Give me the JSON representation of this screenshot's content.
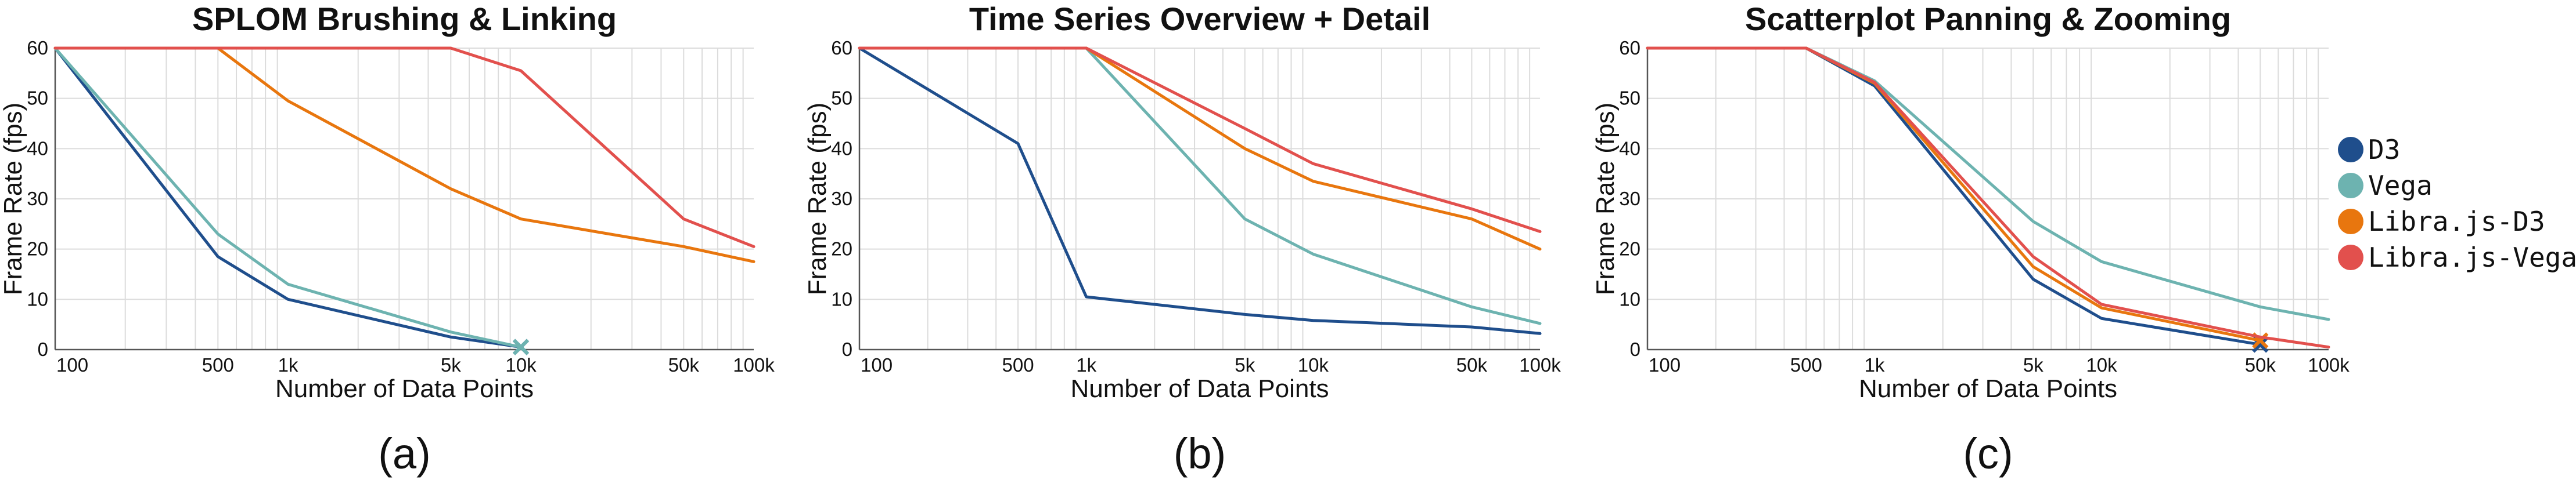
{
  "colors": {
    "D3": "#1f4e8c",
    "Vega": "#6db3b0",
    "Libra.js-D3": "#e8760e",
    "Libra.js-Vega": "#e2504d"
  },
  "legend": {
    "items": [
      {
        "label": "D3",
        "color": "#1f4e8c"
      },
      {
        "label": "Vega",
        "color": "#6db3b0"
      },
      {
        "label": "Libra.js-D3",
        "color": "#e8760e"
      },
      {
        "label": "Libra.js-Vega",
        "color": "#e2504d"
      }
    ]
  },
  "chart_data": [
    {
      "type": "line",
      "title": "SPLOM Brushing & Linking",
      "xlabel": "Number of Data Points",
      "ylabel": "Frame Rate (fps)",
      "panel_label": "(a)",
      "xscale": "log",
      "xlim": [
        100,
        100000
      ],
      "ylim": [
        0,
        60
      ],
      "grid": true,
      "x_ticks": [
        100,
        500,
        1000,
        5000,
        10000,
        50000,
        100000
      ],
      "x_tick_labels": [
        "100",
        "500",
        "1k",
        "5k",
        "10k",
        "50k",
        "100k"
      ],
      "y_ticks": [
        0,
        10,
        20,
        30,
        40,
        50,
        60
      ],
      "series": [
        {
          "name": "D3",
          "x": [
            100,
            500,
            1000,
            5000,
            10000
          ],
          "values": [
            60,
            18.5,
            10,
            2.5,
            0.5
          ],
          "end_marker": "x"
        },
        {
          "name": "Vega",
          "x": [
            100,
            500,
            1000,
            5000,
            10000
          ],
          "values": [
            60,
            23,
            13,
            3.5,
            0.5
          ],
          "end_marker": "x"
        },
        {
          "name": "Libra.js-D3",
          "x": [
            100,
            500,
            1000,
            5000,
            10000,
            50000,
            100000
          ],
          "values": [
            60,
            60,
            49.5,
            32,
            26,
            20.5,
            17.5
          ]
        },
        {
          "name": "Libra.js-Vega",
          "x": [
            100,
            500,
            1000,
            5000,
            10000,
            50000,
            100000
          ],
          "values": [
            60,
            60,
            60,
            60,
            55.5,
            26,
            20.5
          ]
        }
      ]
    },
    {
      "type": "line",
      "title": "Time Series Overview + Detail",
      "xlabel": "Number of Data Points",
      "ylabel": "Frame Rate (fps)",
      "panel_label": "(b)",
      "xscale": "log",
      "xlim": [
        100,
        100000
      ],
      "ylim": [
        0,
        60
      ],
      "grid": true,
      "x_ticks": [
        100,
        500,
        1000,
        5000,
        10000,
        50000,
        100000
      ],
      "x_tick_labels": [
        "100",
        "500",
        "1k",
        "5k",
        "10k",
        "50k",
        "100k"
      ],
      "y_ticks": [
        0,
        10,
        20,
        30,
        40,
        50,
        60
      ],
      "series": [
        {
          "name": "D3",
          "x": [
            100,
            500,
            1000,
            5000,
            10000,
            50000,
            100000
          ],
          "values": [
            60,
            41,
            10.5,
            7,
            5.8,
            4.5,
            3.2
          ]
        },
        {
          "name": "Vega",
          "x": [
            100,
            500,
            1000,
            5000,
            10000,
            50000,
            100000
          ],
          "values": [
            60,
            60,
            60,
            26,
            19,
            8.5,
            5.2
          ]
        },
        {
          "name": "Libra.js-D3",
          "x": [
            100,
            500,
            1000,
            5000,
            10000,
            50000,
            100000
          ],
          "values": [
            60,
            60,
            60,
            40,
            33.5,
            26,
            20
          ]
        },
        {
          "name": "Libra.js-Vega",
          "x": [
            100,
            500,
            1000,
            5000,
            10000,
            50000,
            100000
          ],
          "values": [
            60,
            60,
            60,
            44,
            37,
            28,
            23.5
          ]
        }
      ]
    },
    {
      "type": "line",
      "title": "Scatterplot Panning & Zooming",
      "xlabel": "Number of Data Points",
      "ylabel": "Frame Rate (fps)",
      "panel_label": "(c)",
      "xscale": "log",
      "xlim": [
        100,
        100000
      ],
      "ylim": [
        0,
        60
      ],
      "grid": true,
      "x_ticks": [
        100,
        500,
        1000,
        5000,
        10000,
        50000,
        100000
      ],
      "x_tick_labels": [
        "100",
        "500",
        "1k",
        "5k",
        "10k",
        "50k",
        "100k"
      ],
      "y_ticks": [
        0,
        10,
        20,
        30,
        40,
        50,
        60
      ],
      "series": [
        {
          "name": "D3",
          "x": [
            100,
            500,
            1000,
            5000,
            10000,
            50000
          ],
          "values": [
            60,
            60,
            52.5,
            14,
            6.2,
            1
          ],
          "end_marker": "x"
        },
        {
          "name": "Vega",
          "x": [
            100,
            500,
            1000,
            5000,
            10000,
            50000,
            100000
          ],
          "values": [
            60,
            60,
            53.5,
            25.5,
            17.5,
            8.5,
            6
          ]
        },
        {
          "name": "Libra.js-D3",
          "x": [
            100,
            500,
            1000,
            5000,
            10000,
            50000
          ],
          "values": [
            60,
            60,
            53,
            16.5,
            8.3,
            1.8
          ],
          "end_marker": "x"
        },
        {
          "name": "Libra.js-Vega",
          "x": [
            100,
            500,
            1000,
            5000,
            10000,
            50000,
            100000
          ],
          "values": [
            60,
            60,
            53.2,
            18.5,
            9,
            2.5,
            0.5
          ]
        }
      ]
    }
  ]
}
